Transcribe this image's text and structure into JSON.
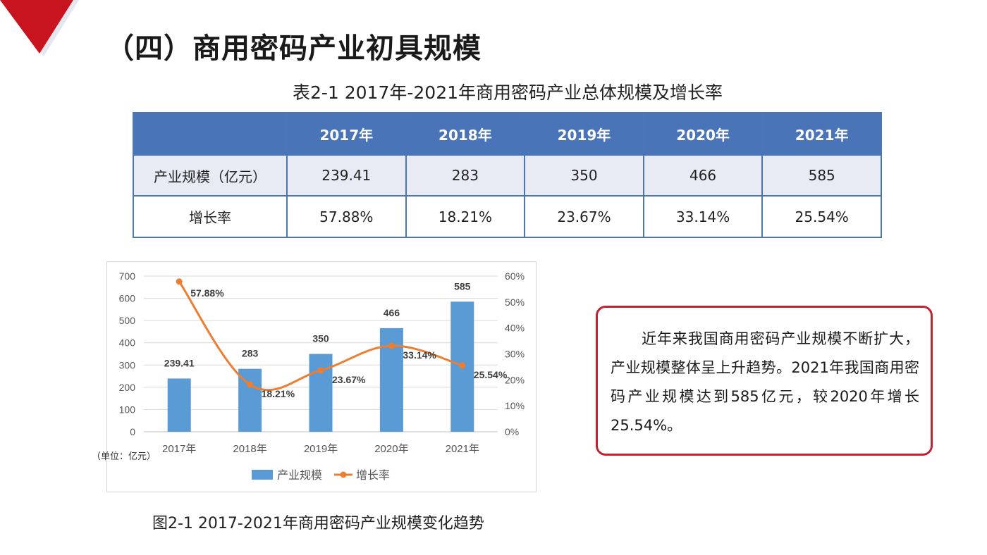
{
  "page": {
    "title": "（四）商用密码产业初具规模",
    "accent_color": "#c0232f"
  },
  "table": {
    "caption": "表2-1 2017年-2021年商用密码产业总体规模及增长率",
    "header_color": "#4a74b8",
    "columns": [
      "",
      "2017年",
      "2018年",
      "2019年",
      "2020年",
      "2021年"
    ],
    "rows": [
      {
        "label": "产业规模（亿元）",
        "values": [
          "239.41",
          "283",
          "350",
          "466",
          "585"
        ]
      },
      {
        "label": "增长率",
        "values": [
          "57.88%",
          "18.21%",
          "23.67%",
          "33.14%",
          "25.54%"
        ]
      }
    ]
  },
  "chart_data": {
    "type": "bar",
    "categories": [
      "2017年",
      "2018年",
      "2019年",
      "2020年",
      "2021年"
    ],
    "series": [
      {
        "name": "产业规模",
        "type": "bar",
        "axis": "left",
        "color": "#5b9bd5",
        "values": [
          239.41,
          283,
          350,
          466,
          585
        ],
        "labels": [
          "239.41",
          "283",
          "350",
          "466",
          "585"
        ]
      },
      {
        "name": "增长率",
        "type": "line",
        "axis": "right",
        "color": "#ed7d31",
        "values": [
          57.88,
          18.21,
          23.67,
          33.14,
          25.54
        ],
        "labels": [
          "57.88%",
          "18.21%",
          "23.67%",
          "33.14%",
          "25.54%"
        ]
      }
    ],
    "y_left": {
      "min": 0,
      "max": 700,
      "step": 100,
      "ticks": [
        "0",
        "100",
        "200",
        "300",
        "400",
        "500",
        "600",
        "700"
      ]
    },
    "y_right": {
      "min": 0,
      "max": 60,
      "step": 10,
      "ticks": [
        "0%",
        "10%",
        "20%",
        "30%",
        "40%",
        "50%",
        "60%"
      ]
    },
    "legend": {
      "position": "bottom",
      "items": [
        "产业规模",
        "增长率"
      ]
    },
    "grid": true,
    "unit_note": "（单位：亿元）"
  },
  "figure": {
    "caption": "图2-1 2017-2021年商用密码产业规模变化趋势"
  },
  "summary": {
    "text": "近年来我国商用密码产业规模不断扩大，产业规模整体呈上升趋势。2021年我国商用密码产业规模达到585亿元，较2020年增长25.54%。"
  }
}
